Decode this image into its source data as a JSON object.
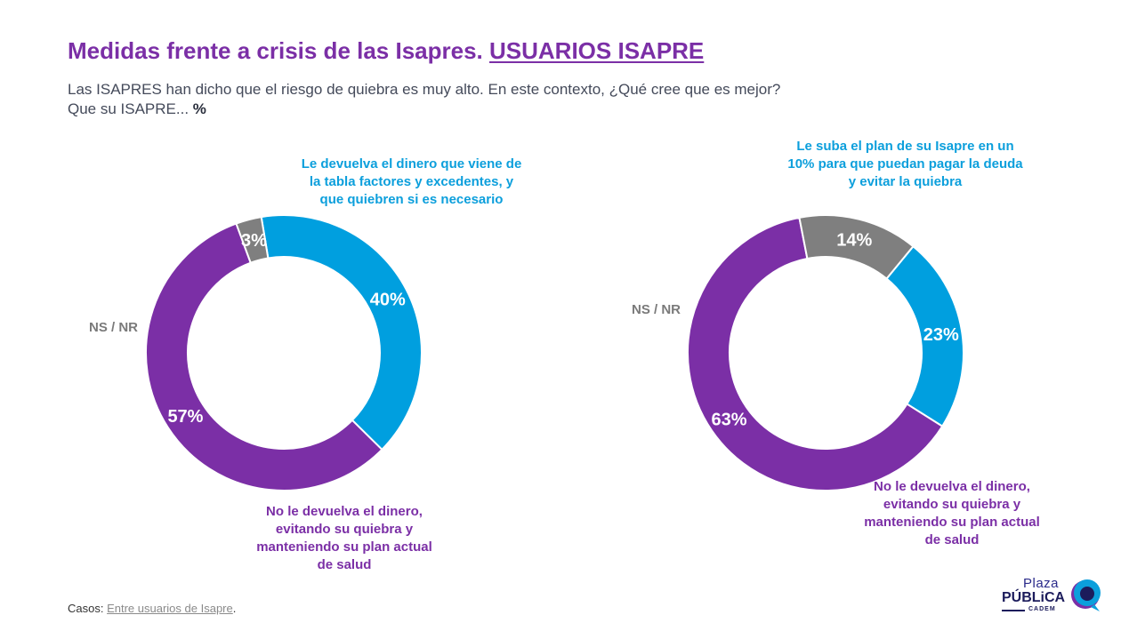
{
  "header": {
    "title_main": "Medidas frente a crisis de las Isapres.",
    "title_highlight": "USUARIOS ISAPRE",
    "subtitle_line1": "Las ISAPRES han dicho que el riesgo de quiebra es muy alto. En este contexto, ¿Qué cree que es mejor?",
    "subtitle_line2": "Que su ISAPRE...",
    "subtitle_unit": "%"
  },
  "chart_data": [
    {
      "type": "pie",
      "donut": true,
      "slices": [
        {
          "label": "Le devuelva el dinero que viene de la tabla factores y excedentes, y que quiebren si es necesario",
          "value": 40,
          "display": "40%",
          "color": "#009fdf"
        },
        {
          "label": "No le devuelva el dinero, evitando su quiebra y manteniendo su plan actual de salud",
          "value": 57,
          "display": "57%",
          "color": "#7b2fa6"
        },
        {
          "label": "NS / NR",
          "value": 3,
          "display": "3%",
          "color": "#7f7f7f"
        }
      ]
    },
    {
      "type": "pie",
      "donut": true,
      "slices": [
        {
          "label": "Le suba el plan de su Isapre en un 10% para que puedan pagar la deuda y evitar la quiebra",
          "value": 23,
          "display": "23%",
          "color": "#009fdf"
        },
        {
          "label": "No le devuelva el dinero, evitando su quiebra y manteniendo su plan actual de salud",
          "value": 63,
          "display": "63%",
          "color": "#7b2fa6"
        },
        {
          "label": "NS / NR",
          "value": 14,
          "display": "14%",
          "color": "#7f7f7f"
        }
      ]
    }
  ],
  "footer": {
    "prefix": "Casos",
    "separator": ": ",
    "source": "Entre usuarios de Isapre",
    "suffix": "."
  },
  "logo": {
    "line1": "Plaza",
    "line2": "PÚBLiCA",
    "line3": "CADEM"
  }
}
